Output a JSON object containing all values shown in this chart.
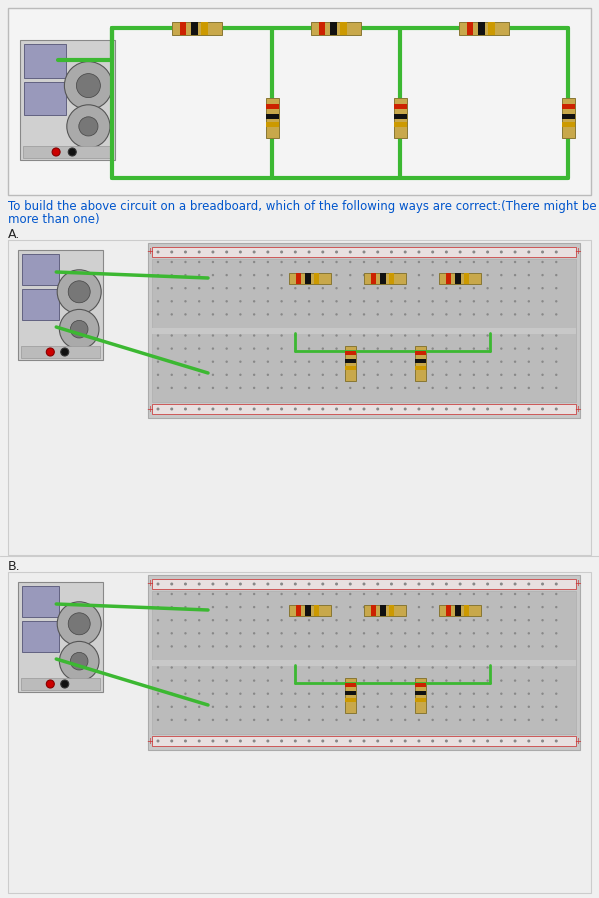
{
  "bg": "#f0f0f0",
  "white": "#ffffff",
  "border": "#cccccc",
  "green": "#3cb832",
  "red_rail": "#cc3333",
  "question_text_line1": "To build the above circuit on a breadboard, which of the following ways are correct:(There might be",
  "question_text_line2": "more than one)",
  "question_color": "#0055cc",
  "label_color": "#222222",
  "resistor_body": "#c8a84b",
  "resistor_band_r": "#cc2200",
  "resistor_band_k": "#111111",
  "resistor_band_g": "#cc9900",
  "ps_bg": "#d0d0d0",
  "ps_screen": "#9999bb",
  "ps_knob": "#888888",
  "bb_bg": "#cccccc",
  "bb_main": "#bbbbbb",
  "hole": "#888888"
}
